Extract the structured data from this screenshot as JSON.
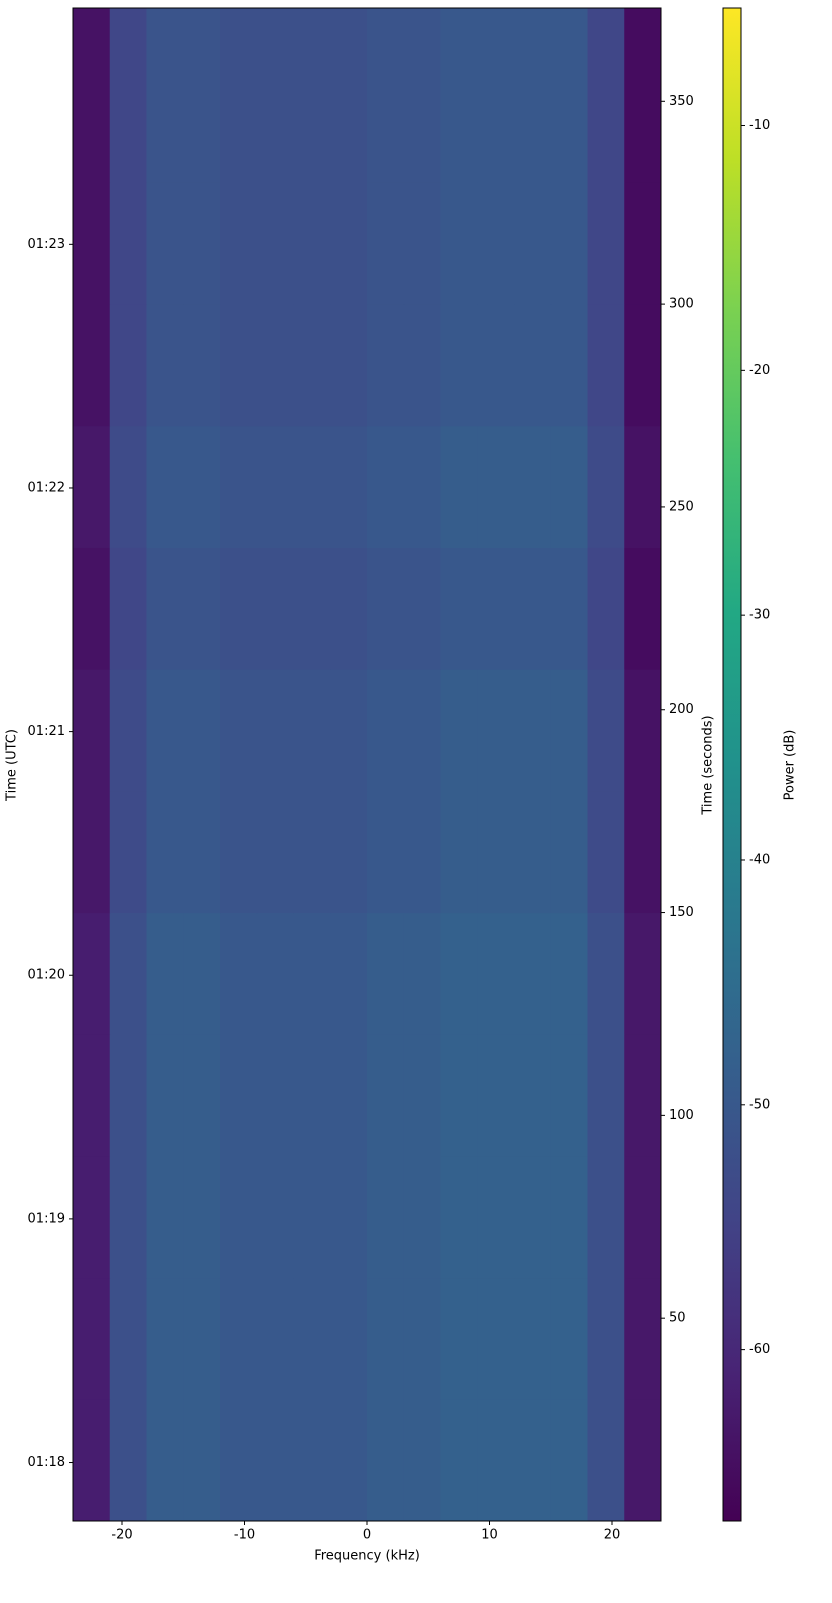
{
  "chart_data": {
    "type": "heatmap",
    "xlabel": "Frequency (kHz)",
    "ylabel": "Time (UTC)",
    "y2label": "Time (seconds)",
    "colorbar_label": "Power (dB)",
    "colormap": "viridis",
    "xlim": [
      -24,
      24
    ],
    "xticks": [
      -20,
      -10,
      0,
      10,
      20
    ],
    "ylim": [
      77.76,
      83.97
    ],
    "yticks": [
      {
        "value": 78,
        "label": "01:18"
      },
      {
        "value": 79,
        "label": "01:19"
      },
      {
        "value": 80,
        "label": "01:20"
      },
      {
        "value": 81,
        "label": "01:21"
      },
      {
        "value": 82,
        "label": "01:22"
      },
      {
        "value": 83,
        "label": "01:23"
      }
    ],
    "y2lim": [
      0,
      373
    ],
    "y2ticks": [
      50,
      100,
      150,
      200,
      250,
      300,
      350
    ],
    "clim": [
      -67,
      -5.2
    ],
    "cticks": [
      -60,
      -50,
      -40,
      -30,
      -20,
      -10
    ],
    "xbins": [
      -24,
      -21,
      -18,
      -15,
      -12,
      -9,
      -6,
      -3,
      0,
      3,
      6,
      9,
      12,
      15,
      18,
      21,
      24
    ],
    "y2bins": [
      0,
      30,
      60,
      90,
      120,
      150,
      180,
      210,
      240,
      270,
      300,
      330,
      373
    ],
    "z": [
      [
        -62,
        -52,
        -49,
        -49,
        -50,
        -50,
        -50,
        -50,
        -49,
        -49,
        -48,
        -48,
        -48,
        -48,
        -52,
        -63
      ],
      [
        -62,
        -52,
        -49,
        -49,
        -50,
        -50,
        -50,
        -50,
        -49,
        -49,
        -48,
        -48,
        -48,
        -48,
        -52,
        -63
      ],
      [
        -62,
        -52,
        -49,
        -49,
        -50,
        -50,
        -50,
        -50,
        -49,
        -49,
        -48,
        -48,
        -48,
        -48,
        -52,
        -63
      ],
      [
        -62,
        -52,
        -49,
        -49,
        -50,
        -50,
        -50,
        -50,
        -49,
        -49,
        -48,
        -48,
        -48,
        -48,
        -52,
        -63
      ],
      [
        -62,
        -52,
        -49,
        -49,
        -50,
        -50,
        -50,
        -50,
        -49,
        -49,
        -48,
        -48,
        -48,
        -48,
        -52,
        -63
      ],
      [
        -63,
        -53,
        -50,
        -50,
        -51,
        -51,
        -51,
        -51,
        -50,
        -50,
        -49,
        -49,
        -49,
        -49,
        -53,
        -64
      ],
      [
        -63,
        -53,
        -50,
        -50,
        -51,
        -51,
        -51,
        -51,
        -50,
        -50,
        -49,
        -49,
        -49,
        -49,
        -53,
        -64
      ],
      [
        -64,
        -54,
        -51,
        -51,
        -52,
        -52,
        -52,
        -52,
        -51,
        -51,
        -50,
        -50,
        -50,
        -50,
        -54,
        -65
      ],
      [
        -63,
        -53,
        -50,
        -50,
        -51,
        -51,
        -51,
        -51,
        -50,
        -50,
        -49,
        -49,
        -49,
        -49,
        -53,
        -64
      ],
      [
        -64,
        -54,
        -51,
        -51,
        -52,
        -52,
        -52,
        -52,
        -51,
        -51,
        -50,
        -50,
        -50,
        -50,
        -54,
        -65
      ],
      [
        -64,
        -54,
        -51,
        -51,
        -52,
        -52,
        -52,
        -52,
        -51,
        -51,
        -50,
        -50,
        -50,
        -50,
        -54,
        -65
      ],
      [
        -64,
        -54,
        -51,
        -51,
        -52,
        -52,
        -52,
        -52,
        -51,
        -51,
        -50,
        -50,
        -50,
        -50,
        -54,
        -65
      ]
    ]
  }
}
